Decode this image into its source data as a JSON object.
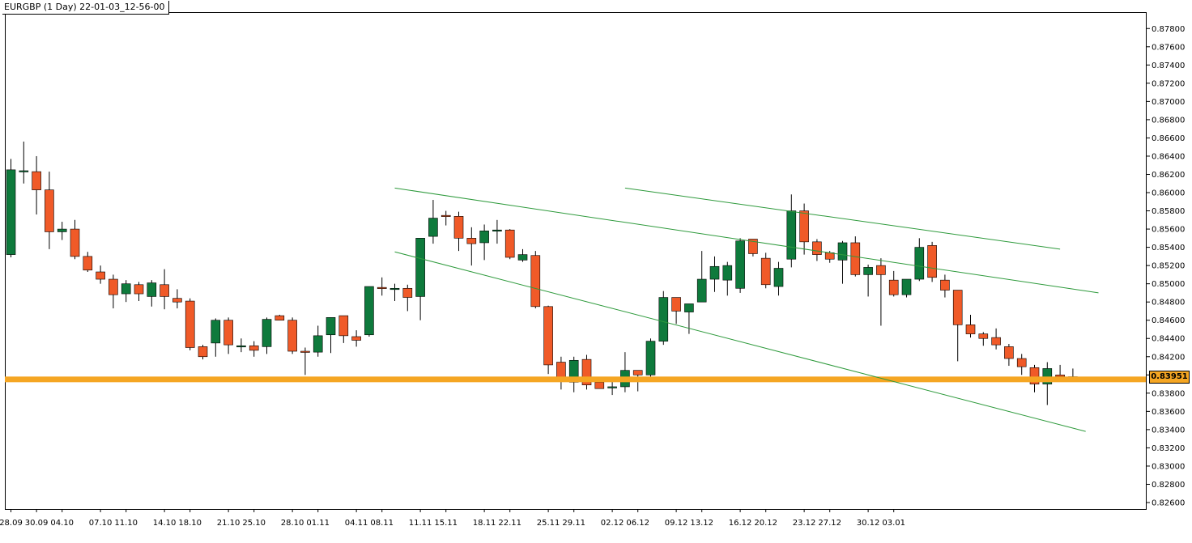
{
  "chart_data": {
    "type": "candlestick",
    "title": "EURGBP (1 Day) 22-01-03_12-56-00",
    "symbol": "EURGBP",
    "timeframe": "1 Day",
    "current_price": "0.83951",
    "ylim": [
      0.8255,
      0.8795
    ],
    "y_ticks": [
      "0.87800",
      "0.87600",
      "0.87400",
      "0.87200",
      "0.87000",
      "0.86800",
      "0.86600",
      "0.86400",
      "0.86200",
      "0.86000",
      "0.85800",
      "0.85600",
      "0.85400",
      "0.85200",
      "0.85000",
      "0.84800",
      "0.84600",
      "0.84400",
      "0.84200",
      "0.84000",
      "0.83800",
      "0.83600",
      "0.83400",
      "0.83200",
      "0.83000",
      "0.82800",
      "0.82600"
    ],
    "x_ticks": [
      {
        "label": "28.09",
        "i": 0
      },
      {
        "label": "30.09",
        "i": 2
      },
      {
        "label": "04.10",
        "i": 4
      },
      {
        "label": "07.10",
        "i": 7
      },
      {
        "label": "11.10",
        "i": 9
      },
      {
        "label": "14.10",
        "i": 12
      },
      {
        "label": "18.10",
        "i": 14
      },
      {
        "label": "21.10",
        "i": 17
      },
      {
        "label": "25.10",
        "i": 19
      },
      {
        "label": "28.10",
        "i": 22
      },
      {
        "label": "01.11",
        "i": 24
      },
      {
        "label": "04.11",
        "i": 27
      },
      {
        "label": "08.11",
        "i": 29
      },
      {
        "label": "11.11",
        "i": 32
      },
      {
        "label": "15.11",
        "i": 34
      },
      {
        "label": "18.11",
        "i": 37
      },
      {
        "label": "22.11",
        "i": 39
      },
      {
        "label": "25.11",
        "i": 42
      },
      {
        "label": "29.11",
        "i": 44
      },
      {
        "label": "02.12",
        "i": 47
      },
      {
        "label": "06.12",
        "i": 49
      },
      {
        "label": "09.12",
        "i": 52
      },
      {
        "label": "13.12",
        "i": 54
      },
      {
        "label": "16.12",
        "i": 57
      },
      {
        "label": "20.12",
        "i": 59
      },
      {
        "label": "23.12",
        "i": 62
      },
      {
        "label": "27.12",
        "i": 64
      },
      {
        "label": "30.12",
        "i": 67
      },
      {
        "label": "03.01",
        "i": 69
      }
    ],
    "candles": [
      [
        0.8532,
        0.8625,
        0.8637,
        0.8529
      ],
      [
        0.8624,
        0.8624,
        0.8656,
        0.861
      ],
      [
        0.8623,
        0.8603,
        0.864,
        0.8576
      ],
      [
        0.8603,
        0.8557,
        0.8623,
        0.8538
      ],
      [
        0.8557,
        0.856,
        0.8568,
        0.8548
      ],
      [
        0.856,
        0.853,
        0.857,
        0.8527
      ],
      [
        0.853,
        0.8515,
        0.8535,
        0.8513
      ],
      [
        0.8513,
        0.8505,
        0.852,
        0.85
      ],
      [
        0.8505,
        0.8488,
        0.851,
        0.8473
      ],
      [
        0.8489,
        0.85,
        0.8504,
        0.848
      ],
      [
        0.8499,
        0.8489,
        0.8502,
        0.8481
      ],
      [
        0.8486,
        0.8501,
        0.8504,
        0.8475
      ],
      [
        0.8499,
        0.8486,
        0.8516,
        0.8472
      ],
      [
        0.8484,
        0.848,
        0.8494,
        0.8473
      ],
      [
        0.8481,
        0.843,
        0.8484,
        0.8427
      ],
      [
        0.8431,
        0.842,
        0.8433,
        0.8417
      ],
      [
        0.8435,
        0.846,
        0.8462,
        0.842
      ],
      [
        0.846,
        0.8433,
        0.8463,
        0.8423
      ],
      [
        0.8432,
        0.8432,
        0.844,
        0.8425
      ],
      [
        0.8432,
        0.8427,
        0.8437,
        0.842
      ],
      [
        0.8431,
        0.8461,
        0.8463,
        0.8423
      ],
      [
        0.8465,
        0.846,
        0.8466,
        0.846
      ],
      [
        0.846,
        0.8426,
        0.8463,
        0.8423
      ],
      [
        0.8426,
        0.8425,
        0.843,
        0.84
      ],
      [
        0.8425,
        0.8443,
        0.8454,
        0.842
      ],
      [
        0.8444,
        0.8463,
        0.8463,
        0.8424
      ],
      [
        0.8465,
        0.8443,
        0.8464,
        0.8435
      ],
      [
        0.8442,
        0.8438,
        0.8449,
        0.8431
      ],
      [
        0.8444,
        0.8497,
        0.8497,
        0.8442
      ],
      [
        0.8496,
        0.8495,
        0.8507,
        0.8487
      ],
      [
        0.8495,
        0.8495,
        0.85,
        0.8481
      ],
      [
        0.8495,
        0.8485,
        0.8499,
        0.847
      ],
      [
        0.8486,
        0.855,
        0.855,
        0.846
      ],
      [
        0.8552,
        0.8572,
        0.8592,
        0.8544
      ],
      [
        0.8575,
        0.8574,
        0.858,
        0.8564
      ],
      [
        0.8574,
        0.855,
        0.8579,
        0.8536
      ],
      [
        0.855,
        0.8544,
        0.8562,
        0.852
      ],
      [
        0.8545,
        0.8558,
        0.8565,
        0.8526
      ],
      [
        0.8559,
        0.8559,
        0.857,
        0.8544
      ],
      [
        0.8559,
        0.8529,
        0.856,
        0.8527
      ],
      [
        0.8526,
        0.8532,
        0.8538,
        0.8524
      ],
      [
        0.8531,
        0.8475,
        0.8536,
        0.8473
      ],
      [
        0.8475,
        0.8411,
        0.8476,
        0.8401
      ],
      [
        0.8414,
        0.8393,
        0.842,
        0.8384
      ],
      [
        0.8392,
        0.8416,
        0.842,
        0.8381
      ],
      [
        0.8417,
        0.8389,
        0.8422,
        0.8384
      ],
      [
        0.8392,
        0.8385,
        0.8395,
        0.8385
      ],
      [
        0.8386,
        0.8387,
        0.8398,
        0.8378
      ],
      [
        0.8387,
        0.8405,
        0.8425,
        0.8381
      ],
      [
        0.8405,
        0.84,
        0.8404,
        0.8382
      ],
      [
        0.84,
        0.8437,
        0.844,
        0.8397
      ],
      [
        0.8437,
        0.8485,
        0.8492,
        0.8433
      ],
      [
        0.8485,
        0.847,
        0.8485,
        0.8456
      ],
      [
        0.8469,
        0.8478,
        0.8478,
        0.8445
      ],
      [
        0.848,
        0.8505,
        0.8536,
        0.848
      ],
      [
        0.8505,
        0.8519,
        0.853,
        0.8491
      ],
      [
        0.8504,
        0.852,
        0.8524,
        0.8487
      ],
      [
        0.8495,
        0.8547,
        0.855,
        0.849
      ],
      [
        0.8549,
        0.8533,
        0.8549,
        0.853
      ],
      [
        0.8528,
        0.8499,
        0.8534,
        0.8495
      ],
      [
        0.8497,
        0.8517,
        0.8524,
        0.8487
      ],
      [
        0.8527,
        0.858,
        0.8598,
        0.8518
      ],
      [
        0.858,
        0.8546,
        0.8588,
        0.8532
      ],
      [
        0.8546,
        0.8532,
        0.8549,
        0.8525
      ],
      [
        0.8534,
        0.8527,
        0.8536,
        0.8523
      ],
      [
        0.8526,
        0.8545,
        0.8547,
        0.85
      ],
      [
        0.8545,
        0.851,
        0.8552,
        0.8508
      ],
      [
        0.851,
        0.8518,
        0.8521,
        0.8486
      ],
      [
        0.852,
        0.851,
        0.8528,
        0.8454
      ],
      [
        0.8504,
        0.8488,
        0.8514,
        0.8486
      ],
      [
        0.8488,
        0.8505,
        0.8505,
        0.8485
      ],
      [
        0.8505,
        0.854,
        0.855,
        0.8503
      ],
      [
        0.8542,
        0.8507,
        0.8546,
        0.8502
      ],
      [
        0.8504,
        0.8493,
        0.851,
        0.8485
      ],
      [
        0.8493,
        0.8455,
        0.8493,
        0.8415
      ],
      [
        0.8455,
        0.8445,
        0.8466,
        0.8441
      ],
      [
        0.8445,
        0.844,
        0.8447,
        0.8432
      ],
      [
        0.8441,
        0.8433,
        0.8451,
        0.8428
      ],
      [
        0.8431,
        0.8418,
        0.8434,
        0.841
      ],
      [
        0.8418,
        0.8409,
        0.8423,
        0.84
      ],
      [
        0.8408,
        0.839,
        0.8411,
        0.8381
      ],
      [
        0.839,
        0.8407,
        0.8414,
        0.8367
      ],
      [
        0.84,
        0.8398,
        0.8411,
        0.8397
      ],
      [
        0.8398,
        0.8397,
        0.8407,
        0.8396
      ]
    ],
    "horizontal_line": {
      "price": 0.83951,
      "color": "#f5a623"
    },
    "trend_lines": [
      {
        "from": {
          "i": 30,
          "price": 0.8605
        },
        "to": {
          "i": 85,
          "price": 0.849
        },
        "color": "#2e9a3c"
      },
      {
        "from": {
          "i": 30,
          "price": 0.8535
        },
        "to": {
          "i": 84,
          "price": 0.8338
        },
        "color": "#2e9a3c"
      },
      {
        "from": {
          "i": 48,
          "price": 0.8605
        },
        "to": {
          "i": 82,
          "price": 0.8538
        },
        "color": "#2e9a3c"
      }
    ],
    "colors": {
      "up": "#0e7a3c",
      "down": "#f05a28",
      "wick": "#000000",
      "trend": "#2e9a3c",
      "level": "#f5a623"
    },
    "grid": false
  }
}
